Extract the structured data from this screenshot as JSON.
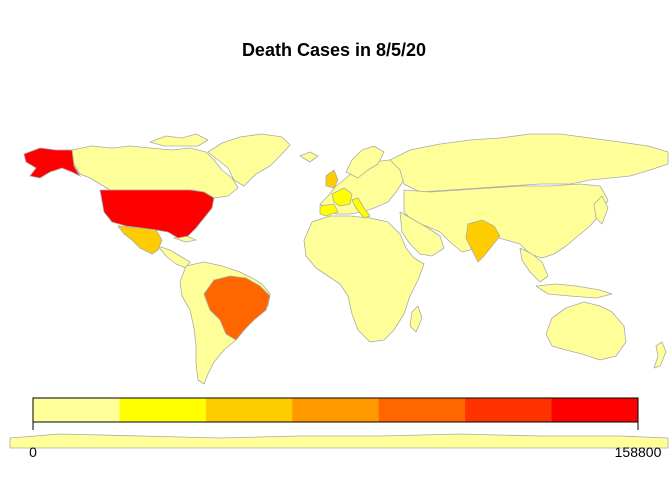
{
  "title": "Death Cases in 8/5/20",
  "legend": {
    "min_label": "0",
    "max_label": "158800",
    "colors": [
      "#ffff99",
      "#ffff00",
      "#ffcc00",
      "#ff9900",
      "#ff6600",
      "#ff3300",
      "#ff0000"
    ]
  },
  "map_data": {
    "type": "choropleth",
    "value_range": [
      0,
      158800
    ],
    "default_color": "#ffff99",
    "highlighted": [
      {
        "region": "United States",
        "color": "#ff0000"
      },
      {
        "region": "Brazil",
        "color": "#ff6600"
      },
      {
        "region": "Mexico",
        "color": "#ffcc00"
      },
      {
        "region": "United Kingdom",
        "color": "#ffcc00"
      },
      {
        "region": "India",
        "color": "#ffcc00"
      },
      {
        "region": "Italy",
        "color": "#ffff00"
      },
      {
        "region": "France",
        "color": "#ffff00"
      },
      {
        "region": "Spain",
        "color": "#ffff00"
      }
    ]
  }
}
